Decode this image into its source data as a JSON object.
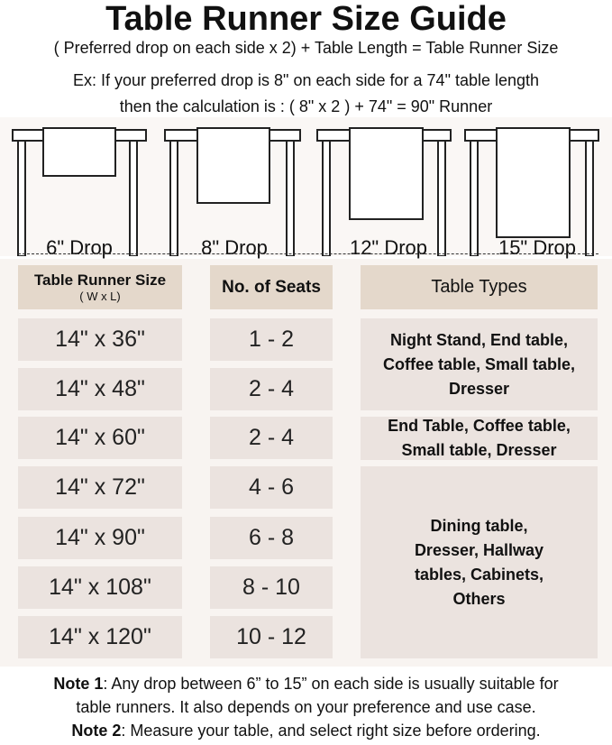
{
  "title": "Table Runner Size Guide",
  "formula": "( Preferred drop on each side x 2) + Table Length = Table Runner Size",
  "example_line1": "Ex: If your preferred drop is 8\" on each side for a 74\" table length",
  "example_line2": "then the calculation is : ( 8\" x 2 ) + 74\" = 90\" Runner",
  "drops": [
    "6\" Drop",
    "8\" Drop",
    "12\" Drop",
    "15\" Drop"
  ],
  "headers": {
    "size": "Table Runner Size",
    "size_sub": "( W x L)",
    "seats": "No. of Seats",
    "types": "Table Types"
  },
  "rows": [
    {
      "size": "14\" x 36\"",
      "seats": "1 - 2"
    },
    {
      "size": "14\" x 48\"",
      "seats": "2 - 4"
    },
    {
      "size": "14\" x 60\"",
      "seats": "2 - 4"
    },
    {
      "size": "14\" x 72\"",
      "seats": "4 - 6"
    },
    {
      "size": "14\" x 90\"",
      "seats": "6 - 8"
    },
    {
      "size": "14\" x 108\"",
      "seats": "8 - 10"
    },
    {
      "size": "14\" x 120\"",
      "seats": "10 - 12"
    }
  ],
  "types": [
    "Night Stand, End table, Coffee table, Small table, Dresser",
    "End Table, Coffee table, Small table, Dresser",
    "Dining table, Dresser, Hallway tables, Cabinets, Others"
  ],
  "notes": {
    "n1_label": "Note 1",
    "n1_text": ": Any drop between 6” to 15” on each side is usually suitable for",
    "n1_text2": "table runners. It also depends on your preference and use case.",
    "n2_label": "Note 2",
    "n2_text": ": Measure your table, and select right size before ordering."
  },
  "colors": {
    "header_cell": "#e4d8cb",
    "body_cell": "#ebe3df",
    "panel": "#f8f4f1"
  }
}
